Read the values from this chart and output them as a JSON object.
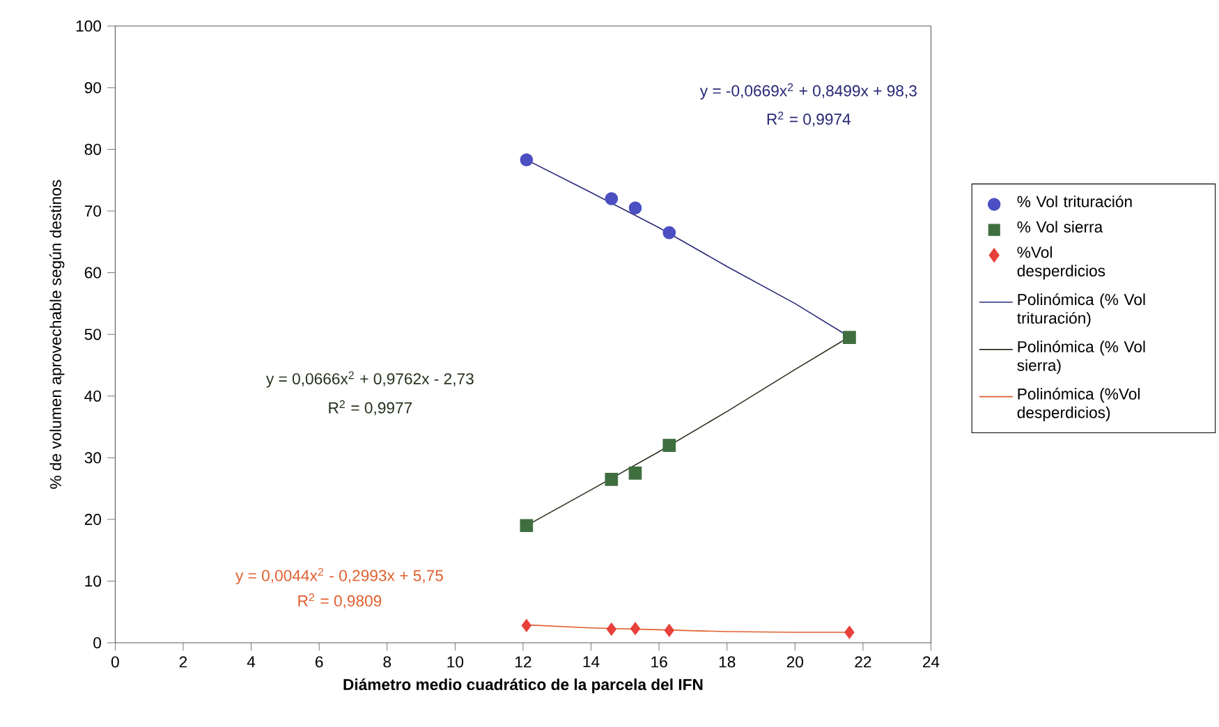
{
  "chart_data": {
    "type": "scatter",
    "xlabel": "Diámetro medio cuadrático de la parcela del IFN",
    "ylabel": "% de volumen aprovechable según destinos",
    "xlim": [
      0,
      24
    ],
    "xticks": [
      0,
      2,
      4,
      6,
      8,
      10,
      12,
      14,
      16,
      18,
      20,
      22,
      24
    ],
    "ylim": [
      0,
      100
    ],
    "yticks": [
      0,
      10,
      20,
      30,
      40,
      50,
      60,
      70,
      80,
      90,
      100
    ],
    "grid": false,
    "legend": "right",
    "annotations": [
      "y = -0,0669x$^{2}$ + 0,8499x + 98,3",
      "R$^{2}$ = 0,9974",
      "y = 0,0666x$^{2}$ + 0,9762x - 2,73",
      "R$^{2}$ = 0,9977",
      "y = 0,0044x$^{2}$ - 0,2993x + 5,75",
      "R$^{2}$ = 0,9809"
    ],
    "series": [
      {
        "name": "% Vol trituración",
        "type": "scatter",
        "marker": "circle",
        "color": "#4b4fc2",
        "x": [
          12.1,
          14.6,
          15.3,
          16.3
        ],
        "values": [
          78.3,
          72,
          70.5,
          66.5
        ]
      },
      {
        "name": "% Vol sierra",
        "type": "scatter",
        "marker": "square",
        "color": "#3f6e3f",
        "x": [
          12.1,
          14.6,
          15.3,
          16.3,
          21.6
        ],
        "values": [
          19,
          26.5,
          27.5,
          32,
          49.5
        ]
      },
      {
        "name": "%Vol desperdicios",
        "type": "scatter",
        "marker": "diamond",
        "color": "#e8403a",
        "x": [
          12.1,
          14.6,
          15.3,
          16.3,
          21.6
        ],
        "values": [
          2.8,
          2.2,
          2.3,
          2,
          1.7
        ]
      },
      {
        "name": "Polinómica (% Vol trituración)",
        "type": "line",
        "marker": "none",
        "color": "#2a2a78",
        "x": [
          12.1,
          14,
          16,
          18,
          20,
          21.6
        ],
        "values": [
          78.3,
          73,
          67.3,
          61,
          55,
          49.6
        ]
      },
      {
        "name": "Polinómica (% Vol sierra)",
        "type": "line",
        "marker": "none",
        "color": "#26331c",
        "x": [
          12.1,
          14,
          16,
          18,
          20,
          21.6
        ],
        "values": [
          19,
          24.8,
          31,
          37.5,
          44.3,
          49.6
        ]
      },
      {
        "name": "Polinómica (%Vol desperdicios)",
        "type": "line",
        "marker": "none",
        "color": "#e0602e",
        "x": [
          12.1,
          14,
          16,
          18,
          20,
          21.6
        ],
        "values": [
          2.9,
          2.4,
          2.1,
          1.8,
          1.7,
          1.7
        ]
      }
    ]
  }
}
